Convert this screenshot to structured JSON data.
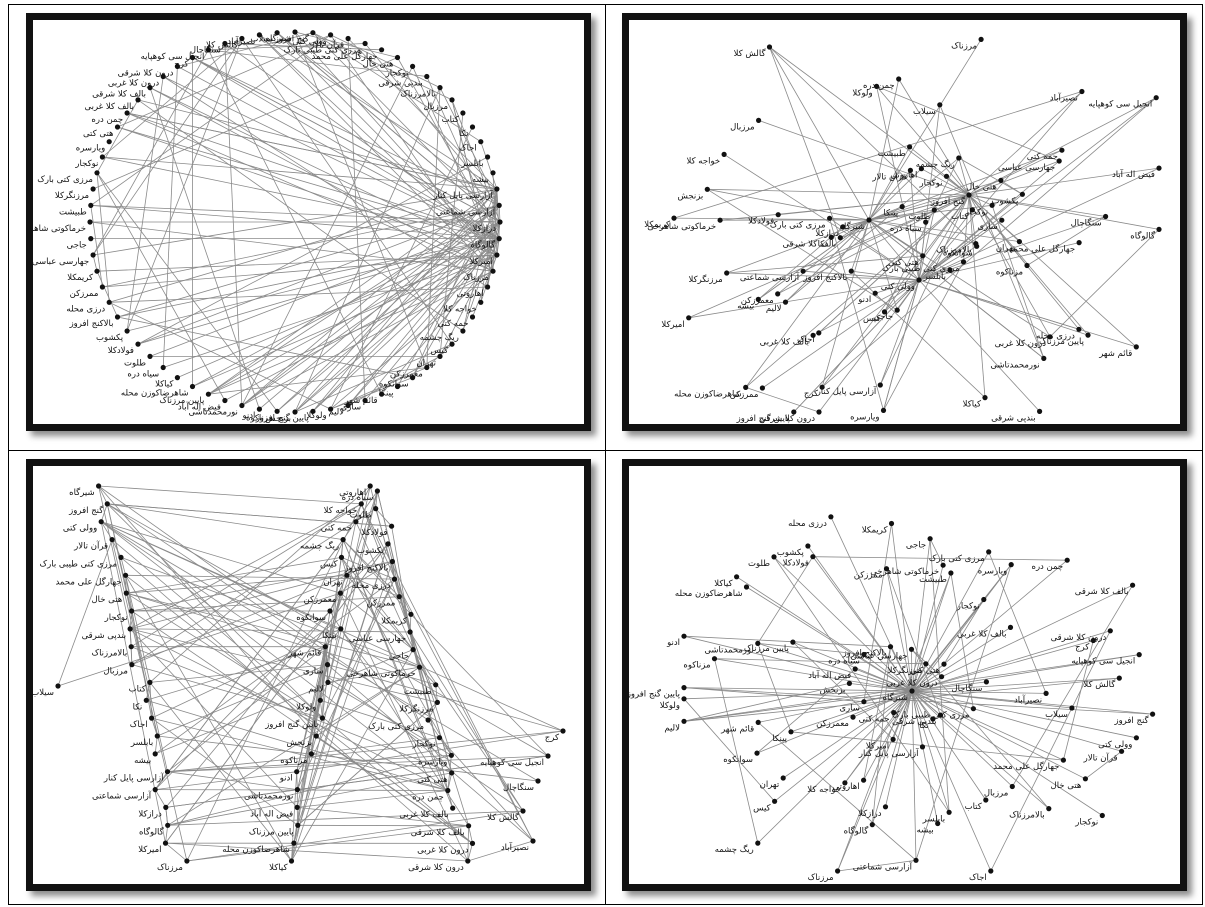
{
  "labels": [
    "شیرگاه",
    "گنج افروز",
    "وولی کتی",
    "قرآن تالار",
    "مرزی کتی طیبی بارک",
    "جهارگل علی محمد",
    "هتی خال",
    "نوکجار",
    "بندپی شرقی",
    "بالامرزناک",
    "مرزبال",
    "کتاب",
    "نکا",
    "اجاک",
    "بابلسر",
    "بیشه",
    "آزارسی پایل کنار",
    "آزارسی شماعتی",
    "درازکلا",
    "گالوگاه",
    "امیرکلا",
    "مرزناک",
    "اهاروتی",
    "خواجه کلا",
    "حمه کتی",
    "ریگ چشمه",
    "کیس",
    "تهران",
    "معمرزکن",
    "سوانکوه",
    "پینکا",
    "قائم شهر",
    "ساری",
    "لالیم",
    "ولوکلا",
    "پایین گنج افروز",
    "بزنجش",
    "مزناکوه",
    "ادنو",
    "نورمحمدتاشی",
    "فیض اله آباد",
    "پایین مرزناک",
    "شاهرضاکوزن محله",
    "کیاکلا",
    "سیاه دره",
    "طلوت",
    "فولادکلا",
    "پکشوب",
    "بالاکنج افروز",
    "درزی محله",
    "ممرزکن",
    "کریمکلا",
    "جهارسی عباسی",
    "جاجی",
    "خرماکوتی شاهرخی",
    "طبیشت",
    "مرزنگرکلا",
    "مرزی کتی بارک",
    "نوکجار",
    "ویارسره",
    "هتی کتی",
    "چمن دره",
    "بالف کلا غربی",
    "بالف کلا شرقی",
    "درون کلا غربی",
    "درون کلا شرقی",
    "کرج",
    "انجیل سی کوهپایه",
    "سنگاچال",
    "گالش کلا",
    "نصیرآباد",
    "سیلاب"
  ]
}
